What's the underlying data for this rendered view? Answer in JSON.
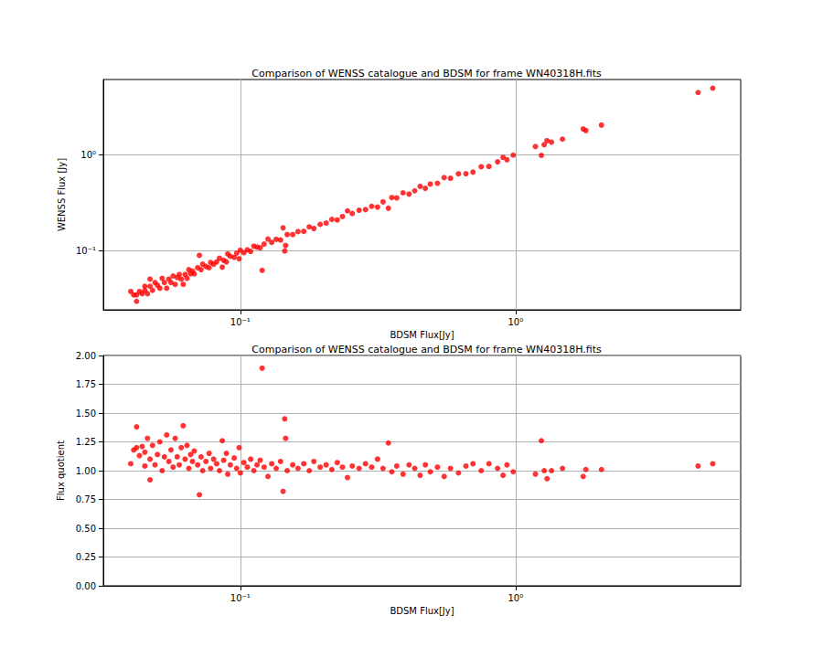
{
  "chart_data": [
    {
      "type": "scatter",
      "title": "Comparison of WENSS catalogue and BDSM for frame WN40318H.fits",
      "x_label": "BDSM Flux[Jy]",
      "y_label": "WENSS Flux [Jy]",
      "color": "#ff0000",
      "marker": "circle",
      "log": true,
      "grid": true,
      "xlim": [
        0.0318,
        6.57
      ],
      "ylim": [
        0.0245,
        6.04
      ],
      "xticks": [
        {
          "value": 0.1,
          "label": "10⁻¹"
        },
        {
          "value": 1,
          "label": "10⁰"
        }
      ],
      "yticks": [
        {
          "value": 0.1,
          "label": "10⁻¹"
        },
        {
          "value": 1,
          "label": "10⁰"
        }
      ],
      "x": [
        0.04,
        0.041,
        0.042,
        0.042,
        0.043,
        0.044,
        0.045,
        0.045,
        0.046,
        0.047,
        0.047,
        0.048,
        0.049,
        0.05,
        0.051,
        0.052,
        0.053,
        0.054,
        0.055,
        0.056,
        0.057,
        0.058,
        0.059,
        0.06,
        0.061,
        0.062,
        0.063,
        0.064,
        0.065,
        0.066,
        0.067,
        0.068,
        0.07,
        0.071,
        0.072,
        0.073,
        0.075,
        0.077,
        0.078,
        0.08,
        0.082,
        0.084,
        0.086,
        0.087,
        0.089,
        0.09,
        0.092,
        0.095,
        0.097,
        0.099,
        0.1,
        0.103,
        0.106,
        0.109,
        0.112,
        0.115,
        0.118,
        0.12,
        0.122,
        0.126,
        0.13,
        0.135,
        0.14,
        0.143,
        0.145,
        0.146,
        0.148,
        0.155,
        0.162,
        0.17,
        0.178,
        0.185,
        0.195,
        0.205,
        0.215,
        0.225,
        0.235,
        0.245,
        0.255,
        0.27,
        0.285,
        0.3,
        0.315,
        0.33,
        0.345,
        0.355,
        0.37,
        0.39,
        0.41,
        0.43,
        0.45,
        0.47,
        0.49,
        0.52,
        0.55,
        0.58,
        0.62,
        0.66,
        0.7,
        0.75,
        0.8,
        0.86,
        0.9,
        0.93,
        0.98,
        1.18,
        1.24,
        1.27,
        1.3,
        1.35,
        1.48,
        1.76,
        1.8,
        2.05,
        4.6,
        5.2
      ],
      "values": [
        0.038,
        0.035,
        0.035,
        0.03,
        0.038,
        0.036,
        0.043,
        0.039,
        0.036,
        0.043,
        0.051,
        0.039,
        0.047,
        0.044,
        0.041,
        0.052,
        0.047,
        0.041,
        0.051,
        0.047,
        0.055,
        0.045,
        0.053,
        0.057,
        0.051,
        0.045,
        0.057,
        0.052,
        0.064,
        0.058,
        0.062,
        0.058,
        0.067,
        0.09,
        0.064,
        0.073,
        0.069,
        0.067,
        0.076,
        0.073,
        0.077,
        0.084,
        0.068,
        0.08,
        0.077,
        0.093,
        0.088,
        0.086,
        0.095,
        0.083,
        0.102,
        0.096,
        0.103,
        0.099,
        0.112,
        0.11,
        0.108,
        0.063,
        0.118,
        0.133,
        0.123,
        0.132,
        0.13,
        0.174,
        0.1,
        0.114,
        0.148,
        0.148,
        0.159,
        0.16,
        0.178,
        0.171,
        0.189,
        0.195,
        0.213,
        0.21,
        0.228,
        0.261,
        0.245,
        0.265,
        0.269,
        0.291,
        0.286,
        0.324,
        0.278,
        0.359,
        0.356,
        0.402,
        0.39,
        0.422,
        0.469,
        0.448,
        0.495,
        0.505,
        0.579,
        0.569,
        0.633,
        0.635,
        0.66,
        0.75,
        0.755,
        0.843,
        0.938,
        0.886,
        0.99,
        1.216,
        0.984,
        1.27,
        1.398,
        1.35,
        1.451,
        1.853,
        1.782,
        2.03,
        4.423,
        4.906
      ]
    },
    {
      "type": "scatter",
      "title": "Comparison of WENSS catalogue and BDSM for frame WN40318H.fits",
      "x_label": "BDSM Flux[Jy]",
      "y_label": "Flux quotient",
      "color": "#ff0000",
      "marker": "circle",
      "log": "x",
      "grid": true,
      "xlim": [
        0.0318,
        6.57
      ],
      "ylim": [
        0,
        2
      ],
      "xticks": [
        {
          "value": 0.1,
          "label": "10⁻¹"
        },
        {
          "value": 1,
          "label": "10⁰"
        }
      ],
      "yticks": [
        {
          "value": 0,
          "label": "0.00"
        },
        {
          "value": 0.25,
          "label": "0.25"
        },
        {
          "value": 0.5,
          "label": "0.50"
        },
        {
          "value": 0.75,
          "label": "0.75"
        },
        {
          "value": 1,
          "label": "1.00"
        },
        {
          "value": 1.25,
          "label": "1.25"
        },
        {
          "value": 1.5,
          "label": "1.50"
        },
        {
          "value": 1.75,
          "label": "1.75"
        },
        {
          "value": 2,
          "label": "2.00"
        }
      ],
      "x": [
        0.04,
        0.041,
        0.042,
        0.042,
        0.043,
        0.044,
        0.045,
        0.045,
        0.046,
        0.047,
        0.047,
        0.048,
        0.049,
        0.05,
        0.051,
        0.052,
        0.053,
        0.054,
        0.055,
        0.056,
        0.057,
        0.058,
        0.059,
        0.06,
        0.061,
        0.062,
        0.063,
        0.064,
        0.065,
        0.066,
        0.067,
        0.068,
        0.07,
        0.071,
        0.072,
        0.073,
        0.075,
        0.077,
        0.078,
        0.08,
        0.082,
        0.084,
        0.086,
        0.087,
        0.089,
        0.09,
        0.092,
        0.095,
        0.097,
        0.099,
        0.1,
        0.103,
        0.106,
        0.109,
        0.112,
        0.115,
        0.118,
        0.12,
        0.122,
        0.126,
        0.13,
        0.135,
        0.14,
        0.143,
        0.145,
        0.146,
        0.148,
        0.155,
        0.162,
        0.17,
        0.178,
        0.185,
        0.195,
        0.205,
        0.215,
        0.225,
        0.235,
        0.245,
        0.255,
        0.27,
        0.285,
        0.3,
        0.315,
        0.33,
        0.345,
        0.355,
        0.37,
        0.39,
        0.41,
        0.43,
        0.45,
        0.47,
        0.49,
        0.52,
        0.55,
        0.58,
        0.62,
        0.66,
        0.7,
        0.75,
        0.8,
        0.86,
        0.9,
        0.93,
        0.98,
        1.18,
        1.24,
        1.27,
        1.3,
        1.35,
        1.48,
        1.76,
        1.8,
        2.05,
        4.6,
        5.2
      ],
      "values": [
        1.06,
        1.18,
        1.2,
        1.38,
        1.13,
        1.21,
        1.04,
        1.16,
        1.28,
        1.1,
        0.92,
        1.22,
        1.05,
        1.14,
        1.25,
        1.0,
        1.12,
        1.31,
        1.08,
        1.18,
        1.03,
        1.28,
        1.12,
        1.05,
        1.2,
        1.39,
        1.1,
        1.22,
        1.02,
        1.14,
        1.08,
        1.17,
        1.05,
        0.79,
        1.12,
        1.0,
        1.08,
        1.15,
        1.02,
        1.1,
        1.06,
        1.0,
        1.26,
        1.09,
        1.15,
        0.97,
        1.05,
        1.11,
        1.02,
        1.2,
        0.98,
        1.07,
        1.03,
        1.1,
        1.0,
        1.05,
        1.09,
        1.89,
        1.03,
        0.95,
        1.06,
        1.02,
        1.08,
        0.82,
        1.45,
        1.28,
        1.0,
        1.05,
        1.02,
        1.06,
        1.0,
        1.08,
        1.03,
        1.05,
        1.01,
        1.07,
        1.03,
        0.94,
        1.04,
        1.02,
        1.06,
        1.03,
        1.1,
        1.02,
        1.24,
        0.99,
        1.04,
        0.97,
        1.05,
        1.02,
        0.96,
        1.05,
        0.99,
        1.03,
        0.95,
        1.02,
        0.98,
        1.04,
        1.06,
        1.0,
        1.06,
        1.02,
        0.96,
        1.05,
        0.99,
        0.97,
        1.26,
        1.0,
        0.93,
        1.0,
        1.02,
        0.95,
        1.01,
        1.01,
        1.04,
        1.06
      ]
    }
  ]
}
